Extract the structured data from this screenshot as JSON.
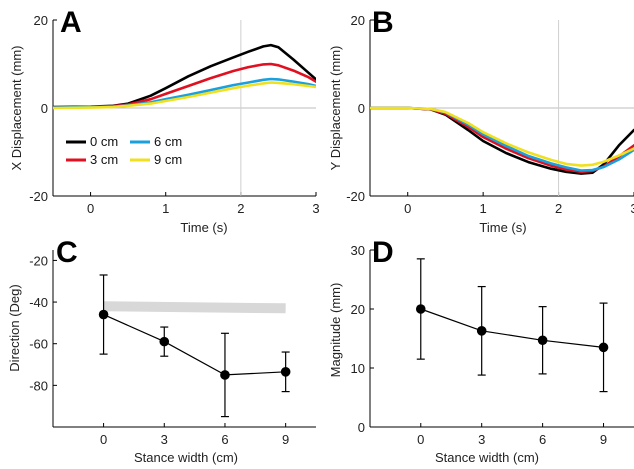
{
  "chart_data": [
    {
      "panel": "A",
      "type": "line",
      "title": "",
      "xlabel": "Time (s)",
      "ylabel": "X Displacement (mm)",
      "xlim": [
        -0.5,
        3
      ],
      "ylim": [
        -20,
        20
      ],
      "xticks": [
        "0",
        "1",
        "2",
        "3"
      ],
      "yticks": [
        "20",
        "0",
        "-20"
      ],
      "ytick_values": [
        20,
        0,
        -20
      ],
      "xtick_values": [
        0,
        1,
        2,
        3
      ],
      "hline": 0,
      "vline": 2,
      "x": [
        -0.5,
        0.0,
        0.3,
        0.5,
        0.8,
        1.0,
        1.3,
        1.6,
        1.9,
        2.1,
        2.3,
        2.4,
        2.5,
        2.7,
        2.9,
        3.0
      ],
      "series": [
        {
          "name": "0 cm",
          "color": "#000000",
          "values": [
            0.2,
            0.3,
            0.5,
            1.0,
            2.8,
            4.5,
            7.2,
            9.5,
            11.5,
            12.8,
            14.0,
            14.3,
            13.8,
            11.0,
            8.0,
            6.5
          ]
        },
        {
          "name": "3 cm",
          "color": "#e01020",
          "values": [
            0.1,
            0.2,
            0.4,
            0.8,
            2.0,
            3.2,
            5.0,
            6.8,
            8.4,
            9.3,
            9.9,
            10.0,
            9.7,
            8.5,
            7.0,
            6.0
          ]
        },
        {
          "name": "6 cm",
          "color": "#1aa0dc",
          "values": [
            0.1,
            0.2,
            0.3,
            0.6,
            1.3,
            2.0,
            3.0,
            4.1,
            5.2,
            5.8,
            6.4,
            6.6,
            6.5,
            6.0,
            5.4,
            5.0
          ]
        },
        {
          "name": "9 cm",
          "color": "#f0e020",
          "values": [
            0.0,
            0.1,
            0.2,
            0.5,
            1.0,
            1.6,
            2.5,
            3.5,
            4.5,
            5.1,
            5.6,
            5.8,
            5.7,
            5.4,
            5.0,
            4.8
          ]
        }
      ]
    },
    {
      "panel": "B",
      "type": "line",
      "title": "",
      "xlabel": "Time (s)",
      "ylabel": "Y Displacement (mm)",
      "xlim": [
        -0.5,
        3
      ],
      "ylim": [
        -20,
        20
      ],
      "xticks": [
        "0",
        "1",
        "2",
        "3"
      ],
      "yticks": [
        "20",
        "0",
        "-20"
      ],
      "ytick_values": [
        20,
        0,
        -20
      ],
      "xtick_values": [
        0,
        1,
        2,
        3
      ],
      "hline": 0,
      "vline": 2,
      "x": [
        -0.5,
        0.0,
        0.3,
        0.5,
        0.8,
        1.0,
        1.3,
        1.6,
        1.9,
        2.1,
        2.3,
        2.45,
        2.6,
        2.8,
        3.0
      ],
      "series": [
        {
          "name": "0 cm",
          "color": "#000000",
          "values": [
            0.0,
            0.0,
            -0.3,
            -1.5,
            -5.0,
            -7.5,
            -10.2,
            -12.3,
            -13.8,
            -14.5,
            -14.9,
            -14.7,
            -12.8,
            -8.5,
            -5.0
          ]
        },
        {
          "name": "3 cm",
          "color": "#e01020",
          "values": [
            0.0,
            0.0,
            -0.3,
            -1.3,
            -4.3,
            -6.6,
            -9.2,
            -11.4,
            -13.1,
            -14.0,
            -14.5,
            -14.3,
            -13.3,
            -11.0,
            -8.5
          ]
        },
        {
          "name": "6 cm",
          "color": "#1aa0dc",
          "values": [
            0.0,
            0.0,
            -0.2,
            -1.0,
            -3.8,
            -6.0,
            -8.6,
            -10.9,
            -12.6,
            -13.5,
            -14.2,
            -14.1,
            -13.4,
            -11.7,
            -9.5
          ]
        },
        {
          "name": "9 cm",
          "color": "#f0e020",
          "values": [
            0.0,
            0.0,
            -0.2,
            -0.9,
            -3.4,
            -5.5,
            -8.0,
            -10.1,
            -11.8,
            -12.7,
            -13.1,
            -12.9,
            -12.2,
            -10.8,
            -9.2
          ]
        }
      ]
    },
    {
      "panel": "C",
      "type": "scatter",
      "title": "",
      "xlabel": "Stance width (cm)",
      "ylabel": "Direction (Deg)",
      "xlim": [
        -2.5,
        10.5
      ],
      "ylim": [
        -100,
        -15
      ],
      "xticks": [
        "0",
        "3",
        "6",
        "9"
      ],
      "xtick_values": [
        0,
        3,
        6,
        9
      ],
      "yticks": [
        "-20",
        "-40",
        "-60",
        "-80"
      ],
      "ytick_values": [
        -20,
        -40,
        -60,
        -80
      ],
      "x": [
        0,
        3,
        6,
        9
      ],
      "values": [
        -46,
        -59,
        -75,
        -73.5
      ],
      "err_upper": [
        -27,
        -52,
        -55,
        -64
      ],
      "err_lower": [
        -65,
        -66,
        -95,
        -83
      ],
      "band_x": [
        0,
        9
      ],
      "band_values": [
        -42,
        -43
      ],
      "band_color": "#d8d8d8"
    },
    {
      "panel": "D",
      "type": "scatter",
      "title": "",
      "xlabel": "Stance width (cm)",
      "ylabel": "Magnitude (mm)",
      "xlim": [
        -2.5,
        10.5
      ],
      "ylim": [
        0,
        30
      ],
      "xticks": [
        "0",
        "3",
        "6",
        "9"
      ],
      "xtick_values": [
        0,
        3,
        6,
        9
      ],
      "yticks": [
        "30",
        "20",
        "10",
        "0"
      ],
      "ytick_values": [
        30,
        20,
        10,
        0
      ],
      "x": [
        0,
        3,
        6,
        9
      ],
      "values": [
        20,
        16.3,
        14.7,
        13.5
      ],
      "err_upper": [
        28.5,
        23.8,
        20.4,
        21
      ],
      "err_lower": [
        11.5,
        8.8,
        9,
        6
      ]
    }
  ],
  "legend": [
    {
      "label": "0 cm",
      "color": "#000000"
    },
    {
      "label": "6 cm",
      "color": "#1aa0dc"
    },
    {
      "label": "3 cm",
      "color": "#e01020"
    },
    {
      "label": "9 cm",
      "color": "#f0e020"
    }
  ]
}
